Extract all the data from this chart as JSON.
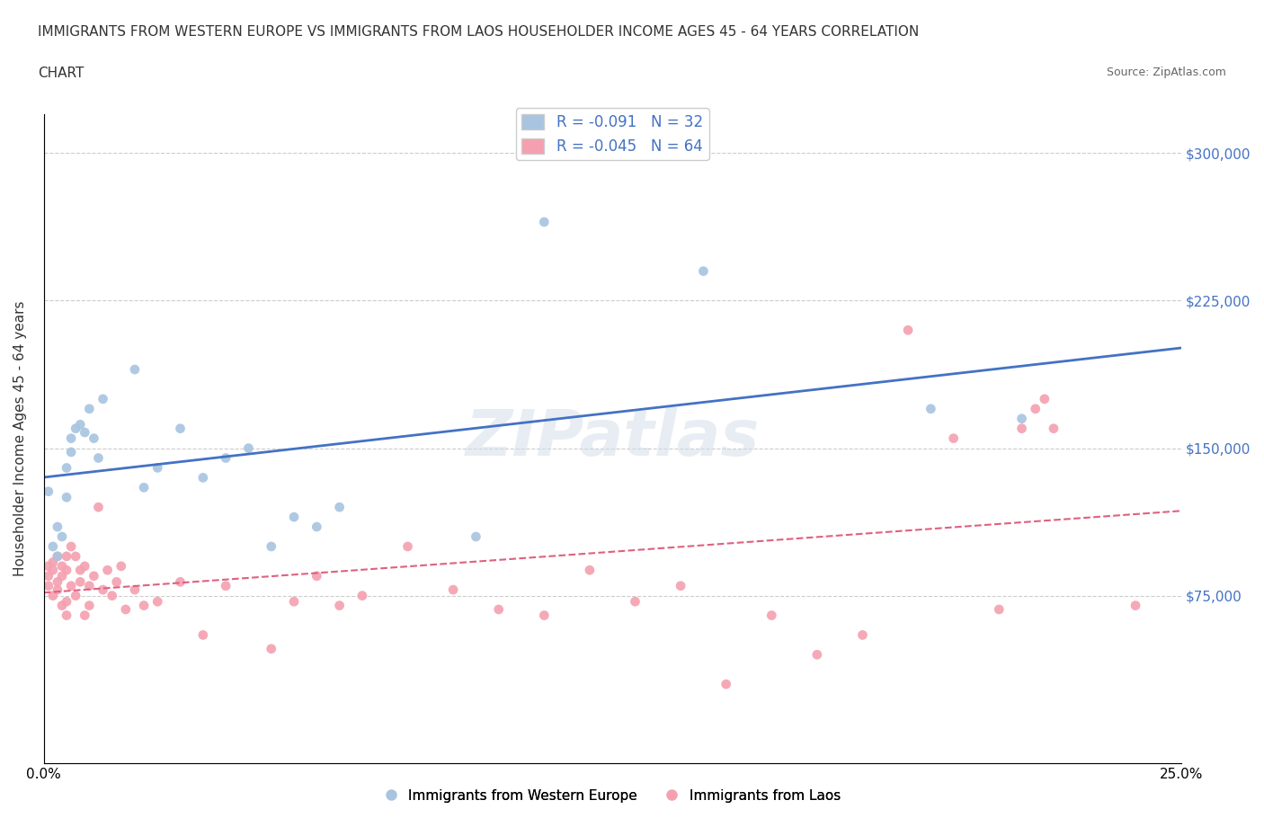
{
  "title_line1": "IMMIGRANTS FROM WESTERN EUROPE VS IMMIGRANTS FROM LAOS HOUSEHOLDER INCOME AGES 45 - 64 YEARS CORRELATION",
  "title_line2": "CHART",
  "source": "Source: ZipAtlas.com",
  "xlabel": "",
  "ylabel": "Householder Income Ages 45 - 64 years",
  "xlim": [
    0.0,
    0.25
  ],
  "ylim": [
    -10000,
    320000
  ],
  "xticks": [
    0.0,
    0.05,
    0.1,
    0.15,
    0.2,
    0.25
  ],
  "xticklabels": [
    "0.0%",
    "",
    "",
    "",
    "",
    "25.0%"
  ],
  "yticks": [
    75000,
    150000,
    225000,
    300000
  ],
  "yticklabels": [
    "$75,000",
    "$150,000",
    "$225,000",
    "$300,000"
  ],
  "r_western": -0.091,
  "n_western": 32,
  "r_laos": -0.045,
  "n_laos": 64,
  "color_western": "#a8c4e0",
  "color_laos": "#f4a0b0",
  "line_color_western": "#4472C4",
  "line_color_laos": "#E06080",
  "watermark": "ZIPatlas",
  "western_x": [
    0.001,
    0.002,
    0.003,
    0.003,
    0.004,
    0.005,
    0.005,
    0.006,
    0.006,
    0.007,
    0.008,
    0.009,
    0.01,
    0.011,
    0.012,
    0.013,
    0.02,
    0.022,
    0.025,
    0.03,
    0.035,
    0.04,
    0.045,
    0.05,
    0.055,
    0.06,
    0.065,
    0.095,
    0.11,
    0.145,
    0.195,
    0.215
  ],
  "western_y": [
    128000,
    100000,
    95000,
    110000,
    105000,
    125000,
    140000,
    155000,
    148000,
    160000,
    162000,
    158000,
    170000,
    155000,
    145000,
    175000,
    190000,
    130000,
    140000,
    160000,
    135000,
    145000,
    150000,
    100000,
    115000,
    110000,
    120000,
    105000,
    265000,
    240000,
    170000,
    165000
  ],
  "laos_x": [
    0.001,
    0.001,
    0.001,
    0.002,
    0.002,
    0.002,
    0.003,
    0.003,
    0.003,
    0.004,
    0.004,
    0.004,
    0.005,
    0.005,
    0.005,
    0.005,
    0.006,
    0.006,
    0.007,
    0.007,
    0.008,
    0.008,
    0.009,
    0.009,
    0.01,
    0.01,
    0.011,
    0.012,
    0.013,
    0.014,
    0.015,
    0.016,
    0.017,
    0.018,
    0.02,
    0.022,
    0.025,
    0.03,
    0.035,
    0.04,
    0.05,
    0.055,
    0.06,
    0.065,
    0.07,
    0.08,
    0.09,
    0.1,
    0.11,
    0.12,
    0.13,
    0.14,
    0.15,
    0.16,
    0.17,
    0.18,
    0.19,
    0.2,
    0.21,
    0.215,
    0.218,
    0.22,
    0.222,
    0.24
  ],
  "laos_y": [
    90000,
    85000,
    80000,
    92000,
    88000,
    75000,
    95000,
    78000,
    82000,
    90000,
    85000,
    70000,
    95000,
    88000,
    72000,
    65000,
    100000,
    80000,
    95000,
    75000,
    88000,
    82000,
    90000,
    65000,
    80000,
    70000,
    85000,
    120000,
    78000,
    88000,
    75000,
    82000,
    90000,
    68000,
    78000,
    70000,
    72000,
    82000,
    55000,
    80000,
    48000,
    72000,
    85000,
    70000,
    75000,
    100000,
    78000,
    68000,
    65000,
    88000,
    72000,
    80000,
    30000,
    65000,
    45000,
    55000,
    210000,
    155000,
    68000,
    160000,
    170000,
    175000,
    160000,
    70000
  ]
}
